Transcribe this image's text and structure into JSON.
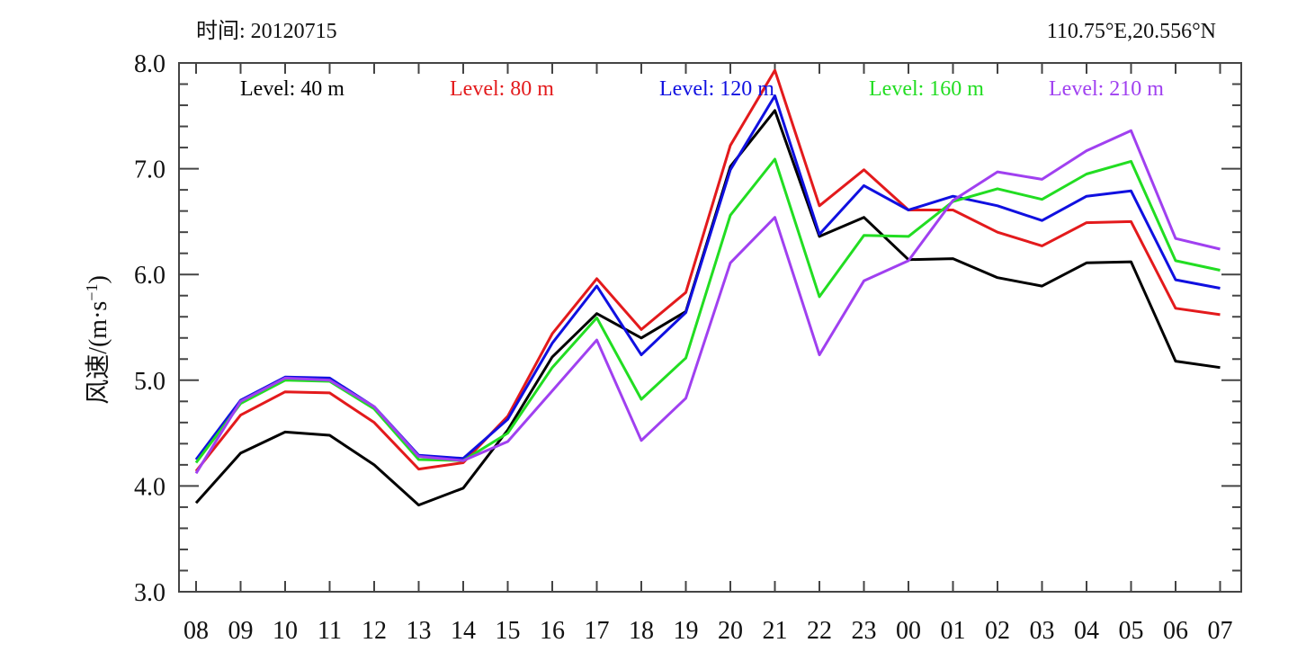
{
  "chart_data": {
    "type": "line",
    "title_left": "时间: 20120715",
    "title_right": "110.75°E,20.556°N",
    "xlabel": "",
    "ylabel": "风速/(m·s",
    "ylabel_sup": "−1",
    "ylabel_close": ")",
    "ylim": [
      3.0,
      8.0
    ],
    "yticks": [
      "3.0",
      "4.0",
      "5.0",
      "6.0",
      "7.0",
      "8.0"
    ],
    "ytick_values": [
      3.0,
      4.0,
      5.0,
      6.0,
      7.0,
      8.0
    ],
    "categories": [
      "08",
      "09",
      "10",
      "11",
      "12",
      "13",
      "14",
      "15",
      "16",
      "17",
      "18",
      "19",
      "20",
      "21",
      "22",
      "23",
      "00",
      "01",
      "02",
      "03",
      "04",
      "05",
      "06",
      "07"
    ],
    "series": [
      {
        "name": "Level: 40 m",
        "color": "#000000",
        "values": [
          3.84,
          4.31,
          4.51,
          4.48,
          4.2,
          3.82,
          3.98,
          4.53,
          5.22,
          5.63,
          5.4,
          5.65,
          7.02,
          7.55,
          6.36,
          6.54,
          6.14,
          6.15,
          5.97,
          5.89,
          6.11,
          6.12,
          5.18,
          5.12
        ]
      },
      {
        "name": "Level: 80 m",
        "color": "#e31a1c",
        "values": [
          4.14,
          4.67,
          4.89,
          4.88,
          4.6,
          4.16,
          4.22,
          4.66,
          5.44,
          5.96,
          5.48,
          5.83,
          7.22,
          7.93,
          6.65,
          6.99,
          6.61,
          6.61,
          6.4,
          6.27,
          6.49,
          6.5,
          5.68,
          5.62
        ]
      },
      {
        "name": "Level: 120 m",
        "color": "#1010e0",
        "values": [
          4.25,
          4.81,
          5.03,
          5.02,
          4.75,
          4.29,
          4.26,
          4.63,
          5.35,
          5.89,
          5.24,
          5.64,
          6.99,
          7.69,
          6.38,
          6.84,
          6.61,
          6.74,
          6.65,
          6.51,
          6.74,
          6.79,
          5.95,
          5.87
        ]
      },
      {
        "name": "Level: 160 m",
        "color": "#22dd22",
        "values": [
          4.22,
          4.78,
          5.0,
          4.99,
          4.73,
          4.25,
          4.24,
          4.5,
          5.12,
          5.59,
          4.82,
          5.21,
          6.56,
          7.09,
          5.79,
          6.37,
          6.36,
          6.69,
          6.81,
          6.71,
          6.95,
          7.07,
          6.13,
          6.04
        ]
      },
      {
        "name": "Level: 210 m",
        "color": "#a040f0",
        "values": [
          4.12,
          4.8,
          5.02,
          5.0,
          4.75,
          4.28,
          4.24,
          4.42,
          4.9,
          5.38,
          4.43,
          4.83,
          6.11,
          6.54,
          5.24,
          5.94,
          6.13,
          6.7,
          6.97,
          6.9,
          7.17,
          7.36,
          6.34,
          6.24
        ]
      }
    ]
  }
}
